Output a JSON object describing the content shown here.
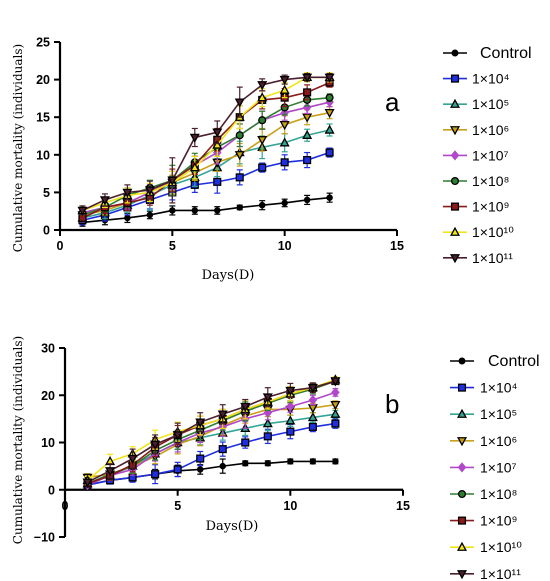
{
  "chart_data": [
    {
      "type": "line",
      "panel_label": "a",
      "xlabel": "Days(D)",
      "ylabel": "Cumulative mortality (individuals)",
      "xlim": [
        0,
        15
      ],
      "ylim": [
        0,
        25
      ],
      "xticks": [
        0,
        5,
        10,
        15
      ],
      "yticks": [
        0,
        5,
        10,
        15,
        20,
        25
      ],
      "grid": false,
      "legend_position": "right",
      "x": [
        1,
        2,
        3,
        4,
        5,
        6,
        7,
        8,
        9,
        10,
        11,
        12
      ],
      "series": [
        {
          "name": "Control",
          "color": "#000000",
          "marker": "circle",
          "values": [
            1.0,
            1.3,
            1.6,
            2.0,
            2.6,
            2.6,
            2.6,
            3.0,
            3.3,
            3.6,
            4.0,
            4.3
          ],
          "errors": [
            0.5,
            0.6,
            0.6,
            0.5,
            0.6,
            0.5,
            0.5,
            0.3,
            0.6,
            0.5,
            0.6,
            0.6
          ]
        },
        {
          "name": "1×10⁴",
          "color": "#1f2fe0",
          "marker": "square",
          "values": [
            1.3,
            2.0,
            3.0,
            4.0,
            5.0,
            6.0,
            6.4,
            7.0,
            8.3,
            9.0,
            9.3,
            10.3
          ],
          "errors": [
            0.6,
            0.8,
            1.0,
            1.2,
            1.0,
            1.0,
            1.5,
            1.0,
            0.6,
            1.0,
            1.0,
            0.6
          ]
        },
        {
          "name": "1×10⁵",
          "color": "#33a595",
          "marker": "triangle",
          "values": [
            1.6,
            2.3,
            3.3,
            4.6,
            6.0,
            7.0,
            8.3,
            10.3,
            11.0,
            11.6,
            12.6,
            13.3
          ],
          "errors": [
            0.5,
            0.8,
            1.0,
            2.0,
            1.2,
            1.2,
            1.2,
            1.5,
            1.5,
            1.2,
            0.8,
            0.8
          ]
        },
        {
          "name": "1×10⁶",
          "color": "#c9a017",
          "marker": "triangle-down",
          "values": [
            2.0,
            2.6,
            3.6,
            5.0,
            6.3,
            7.6,
            9.0,
            10.0,
            12.0,
            14.0,
            15.0,
            15.6
          ],
          "errors": [
            0.5,
            0.6,
            0.8,
            0.8,
            1.0,
            1.0,
            1.2,
            1.5,
            1.5,
            1.2,
            1.0,
            0.8
          ]
        },
        {
          "name": "1×10⁷",
          "color": "#b048c9",
          "marker": "diamond",
          "values": [
            2.3,
            3.0,
            3.6,
            5.0,
            6.6,
            8.6,
            10.3,
            12.6,
            14.6,
            15.6,
            16.3,
            17.0
          ],
          "errors": [
            0.5,
            0.6,
            0.8,
            1.0,
            1.2,
            1.2,
            1.5,
            1.5,
            1.2,
            1.0,
            0.8,
            0.6
          ]
        },
        {
          "name": "1×10⁸",
          "color": "#2e7d32",
          "marker": "circle",
          "values": [
            2.0,
            3.0,
            4.6,
            5.6,
            6.6,
            9.0,
            11.0,
            12.6,
            14.6,
            16.3,
            17.3,
            17.6
          ],
          "errors": [
            0.5,
            0.6,
            1.0,
            1.0,
            2.0,
            1.2,
            1.2,
            1.5,
            1.2,
            1.0,
            0.8,
            0.5
          ]
        },
        {
          "name": "1×10⁹",
          "color": "#8b1a1a",
          "marker": "square",
          "values": [
            1.6,
            3.0,
            3.6,
            4.3,
            6.6,
            8.6,
            12.0,
            15.0,
            17.3,
            17.6,
            18.3,
            19.6
          ],
          "errors": [
            0.5,
            0.8,
            1.0,
            1.0,
            1.5,
            1.2,
            1.5,
            1.5,
            1.2,
            1.2,
            1.0,
            0.6
          ]
        },
        {
          "name": "1×10¹⁰",
          "color": "#f2e417",
          "marker": "triangle",
          "values": [
            2.6,
            3.6,
            4.6,
            5.0,
            6.3,
            8.3,
            11.3,
            15.0,
            17.6,
            18.6,
            20.3,
            20.3
          ],
          "errors": [
            0.6,
            0.6,
            1.0,
            1.2,
            1.5,
            1.5,
            1.5,
            1.5,
            1.2,
            1.0,
            0.6,
            0.6
          ]
        },
        {
          "name": "1×10¹¹",
          "color": "#4b1f2f",
          "marker": "triangle-down",
          "values": [
            2.6,
            4.0,
            5.0,
            5.3,
            6.6,
            12.3,
            13.0,
            17.0,
            19.3,
            20.0,
            20.3,
            20.3
          ],
          "errors": [
            0.6,
            0.8,
            1.0,
            1.2,
            3.0,
            1.2,
            1.5,
            2.0,
            0.8,
            0.6,
            0.5,
            0.5
          ]
        }
      ]
    },
    {
      "type": "line",
      "panel_label": "b",
      "xlabel": "Days(D)",
      "ylabel": "Cumulative mortality (individuals)",
      "xlim": [
        0,
        15
      ],
      "ylim": [
        -10,
        30
      ],
      "xticks": [
        0,
        5,
        10,
        15
      ],
      "yticks": [
        -10,
        0,
        10,
        20,
        30
      ],
      "grid": false,
      "legend_position": "right",
      "x": [
        1,
        2,
        3,
        4,
        5,
        6,
        7,
        8,
        9,
        10,
        11,
        12
      ],
      "series": [
        {
          "name": "Control",
          "color": "#000000",
          "marker": "circle",
          "values": [
            1.0,
            2.0,
            2.6,
            3.3,
            4.0,
            4.3,
            5.0,
            5.6,
            5.6,
            6.0,
            6.0,
            6.0
          ],
          "errors": [
            0.5,
            0.6,
            0.8,
            1.0,
            1.2,
            1.0,
            1.5,
            0.5,
            0.5,
            0.5,
            0.5,
            0.5
          ]
        },
        {
          "name": "1×10⁴",
          "color": "#1f2fe0",
          "marker": "square",
          "values": [
            1.0,
            2.0,
            2.6,
            3.3,
            4.3,
            6.6,
            8.6,
            10.0,
            11.3,
            12.3,
            13.3,
            14.0
          ],
          "errors": [
            0.5,
            0.8,
            1.0,
            2.0,
            1.5,
            1.5,
            1.5,
            1.2,
            1.5,
            1.5,
            1.0,
            1.0
          ]
        },
        {
          "name": "1×10⁵",
          "color": "#33a595",
          "marker": "triangle",
          "values": [
            1.3,
            3.0,
            5.0,
            7.6,
            10.0,
            11.0,
            12.0,
            13.0,
            14.0,
            14.6,
            15.3,
            16.0
          ],
          "errors": [
            0.6,
            1.0,
            1.5,
            1.5,
            1.5,
            1.5,
            1.5,
            1.5,
            1.5,
            1.2,
            1.0,
            0.8
          ]
        },
        {
          "name": "1×10⁶",
          "color": "#c9a017",
          "marker": "triangle-down",
          "values": [
            2.6,
            3.3,
            5.0,
            7.0,
            9.6,
            11.3,
            13.6,
            15.6,
            17.0,
            17.0,
            17.3,
            18.0
          ],
          "errors": [
            0.8,
            1.0,
            1.5,
            1.5,
            2.0,
            2.0,
            2.0,
            1.5,
            1.5,
            1.2,
            1.0,
            0.8
          ]
        },
        {
          "name": "1×10⁷",
          "color": "#b048c9",
          "marker": "diamond",
          "values": [
            1.0,
            3.0,
            4.3,
            7.6,
            10.0,
            12.0,
            13.3,
            15.0,
            16.3,
            17.6,
            19.0,
            20.6
          ],
          "errors": [
            0.5,
            1.0,
            1.2,
            1.5,
            2.0,
            2.0,
            2.0,
            2.0,
            1.5,
            1.2,
            1.0,
            0.8
          ]
        },
        {
          "name": "1×10⁸",
          "color": "#2e7d32",
          "marker": "circle",
          "values": [
            1.3,
            3.3,
            5.0,
            8.3,
            10.6,
            12.6,
            14.6,
            16.6,
            18.3,
            20.0,
            21.3,
            23.0
          ],
          "errors": [
            0.5,
            1.0,
            1.5,
            2.0,
            2.0,
            2.0,
            2.0,
            2.0,
            1.5,
            1.5,
            1.0,
            0.6
          ]
        },
        {
          "name": "1×10⁹",
          "color": "#8b1a1a",
          "marker": "square",
          "values": [
            1.3,
            3.0,
            5.3,
            9.0,
            11.6,
            13.6,
            15.0,
            17.0,
            18.6,
            20.3,
            21.6,
            23.0
          ],
          "errors": [
            0.5,
            1.0,
            1.5,
            2.0,
            2.0,
            2.0,
            2.0,
            2.0,
            1.5,
            1.5,
            1.0,
            0.6
          ]
        },
        {
          "name": "1×10¹⁰",
          "color": "#f2e417",
          "marker": "triangle",
          "values": [
            2.0,
            6.0,
            7.6,
            10.6,
            12.3,
            13.6,
            15.0,
            17.0,
            18.6,
            20.3,
            21.6,
            23.3
          ],
          "errors": [
            0.8,
            1.5,
            1.5,
            2.0,
            2.0,
            2.0,
            2.0,
            2.0,
            1.5,
            1.5,
            1.0,
            0.6
          ]
        },
        {
          "name": "1×10¹¹",
          "color": "#4b1f2f",
          "marker": "triangle-down",
          "values": [
            1.6,
            4.0,
            6.6,
            9.6,
            11.6,
            14.3,
            16.0,
            17.6,
            19.6,
            21.0,
            21.6,
            23.0
          ],
          "errors": [
            0.6,
            1.5,
            2.0,
            2.0,
            2.5,
            2.0,
            2.0,
            1.5,
            2.0,
            1.5,
            1.0,
            0.6
          ]
        }
      ]
    }
  ]
}
